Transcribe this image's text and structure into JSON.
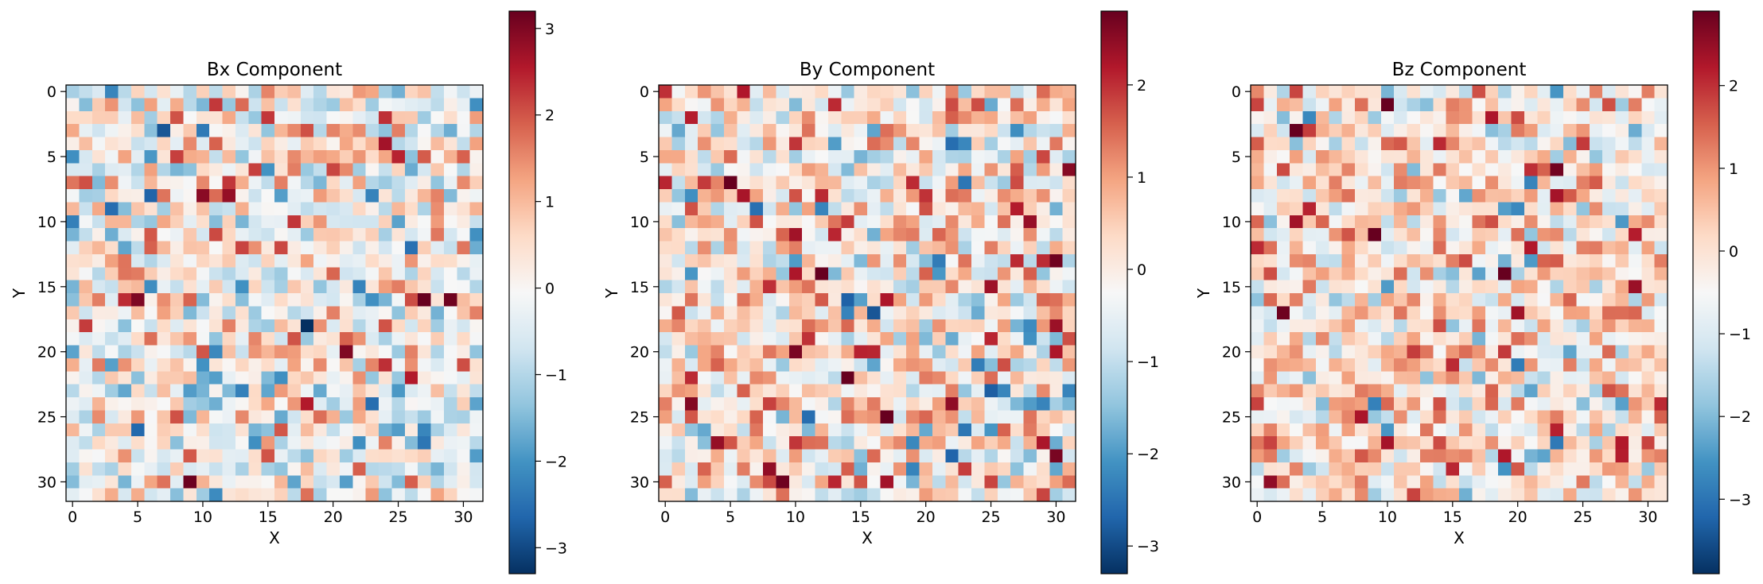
{
  "chart_data": [
    {
      "type": "heatmap",
      "title": "Bx Component",
      "xlabel": "X",
      "ylabel": "Y",
      "grid_size": [
        32,
        32
      ],
      "x_range": [
        -0.5,
        31.5
      ],
      "y_range": [
        31.5,
        -0.5
      ],
      "x_ticks": [
        0,
        5,
        10,
        15,
        20,
        25,
        30
      ],
      "y_ticks": [
        0,
        5,
        10,
        15,
        20,
        25,
        30
      ],
      "colormap": "RdBu_r",
      "color_range": [
        -3.3,
        3.2
      ],
      "colorbar_ticks": [
        -3,
        -2,
        -1,
        0,
        1,
        2,
        3
      ],
      "values_description": "random field, values approximately standard normal",
      "seed": 11
    },
    {
      "type": "heatmap",
      "title": "By Component",
      "xlabel": "X",
      "ylabel": "Y",
      "grid_size": [
        32,
        32
      ],
      "x_range": [
        -0.5,
        31.5
      ],
      "y_range": [
        31.5,
        -0.5
      ],
      "x_ticks": [
        0,
        5,
        10,
        15,
        20,
        25,
        30
      ],
      "y_ticks": [
        0,
        5,
        10,
        15,
        20,
        25,
        30
      ],
      "colormap": "RdBu_r",
      "color_range": [
        -3.3,
        2.8
      ],
      "colorbar_ticks": [
        -3,
        -2,
        -1,
        0,
        1,
        2
      ],
      "seed": 23
    },
    {
      "type": "heatmap",
      "title": "Bz Component",
      "xlabel": "X",
      "ylabel": "Y",
      "grid_size": [
        32,
        32
      ],
      "x_range": [
        -0.5,
        31.5
      ],
      "y_range": [
        31.5,
        -0.5
      ],
      "x_ticks": [
        0,
        5,
        10,
        15,
        20,
        25,
        30
      ],
      "y_ticks": [
        0,
        5,
        10,
        15,
        20,
        25,
        30
      ],
      "colormap": "RdBu_r",
      "color_range": [
        -3.9,
        2.9
      ],
      "colorbar_ticks": [
        -3,
        -2,
        -1,
        0,
        1,
        2
      ],
      "seed": 37
    }
  ]
}
